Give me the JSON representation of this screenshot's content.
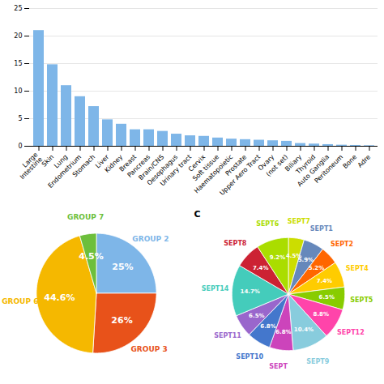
{
  "chart_data": [
    {
      "type": "bar",
      "categories": [
        "Large\nIntestine",
        "Skin",
        "Lung",
        "Endometrium",
        "Stomach",
        "Liver",
        "Kidney",
        "Breast",
        "Pancreas",
        "Brain/CNS",
        "Oesophagus",
        "Urinary tract",
        "Cervix",
        "Soft tissue",
        "Haematopoietic",
        "Prostate",
        "Upper Aero Tract",
        "Ovary",
        "(not set)",
        "Biliary",
        "Thyroid",
        "Auto Ganglia",
        "Peritoneum",
        "Bone",
        "Adre"
      ],
      "values": [
        21,
        14.8,
        11,
        9,
        7.2,
        4.8,
        4,
        3,
        3,
        2.7,
        2.2,
        1.9,
        1.8,
        1.5,
        1.3,
        1.2,
        1.1,
        1.0,
        0.9,
        0.5,
        0.4,
        0.3,
        0.2,
        0.15,
        0.1
      ],
      "color": "#7EB6E8",
      "ylim": [
        0,
        25
      ],
      "yticks": [
        0,
        5,
        10,
        15,
        20,
        25
      ],
      "grid": true
    },
    {
      "type": "pie",
      "categories": [
        "GROUP 2",
        "GROUP 3",
        "GROUP 6",
        "GROUP 7"
      ],
      "values": [
        25,
        26,
        44.6,
        4.5
      ],
      "colors": [
        "#7EB6E8",
        "#E8521A",
        "#F5B800",
        "#6DBF3C"
      ],
      "data_labels": true,
      "value_labels": [
        "25%",
        "26%",
        "44.6%",
        "4.5%"
      ]
    },
    {
      "type": "pie",
      "categories": [
        "SEPT7",
        "SEPT1",
        "SEPT2",
        "SEPT4",
        "SEPT5",
        "SEPT12",
        "SEPT9",
        "SEPT ",
        "SEPT10",
        "SEPT11",
        "SEPT14",
        "SEPT8",
        "SEPT6"
      ],
      "values": [
        4.5,
        5.9,
        5.2,
        7.4,
        6.5,
        8.8,
        10.4,
        6.8,
        6.8,
        6.5,
        14.7,
        7.4,
        9.2
      ],
      "colors": [
        "#CCDD00",
        "#6688BB",
        "#FF6600",
        "#FFCC00",
        "#88CC00",
        "#FF44AA",
        "#88CCDD",
        "#CC44BB",
        "#4477CC",
        "#9966CC",
        "#44CCBB",
        "#CC2233",
        "#AADD00"
      ],
      "data_labels": true,
      "value_labels": [
        "4.5%",
        "5.9%",
        "5.2%",
        "7.4%",
        "6.5%",
        "8.8%",
        "10.4%",
        "6.8%",
        "6.8%",
        "6.5%",
        "14.7%",
        "7.4%",
        "9.2%"
      ],
      "annotations": [
        "C"
      ]
    }
  ]
}
